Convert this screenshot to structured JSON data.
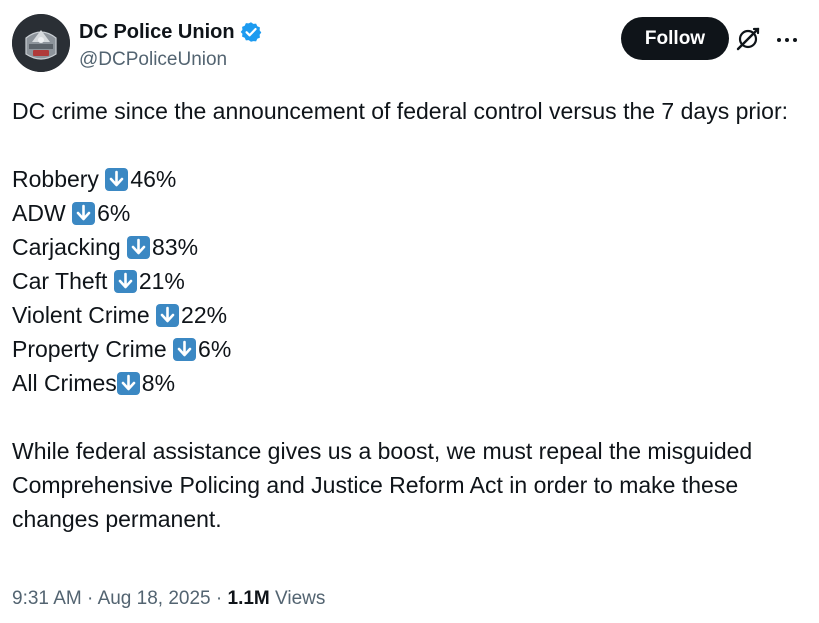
{
  "author": {
    "display_name": "DC Police Union",
    "handle": "@DCPoliceUnion",
    "verified": true
  },
  "actions": {
    "follow_label": "Follow",
    "grok_icon": "grok-icon",
    "more_icon": "more-icon"
  },
  "tweet": {
    "intro": "DC crime since the announcement of federal control versus the 7 days prior:",
    "stats": [
      {
        "label": "Robbery ",
        "value": "46%"
      },
      {
        "label": "ADW ",
        "value": "6%"
      },
      {
        "label": "Carjacking ",
        "value": "83%"
      },
      {
        "label": "Car Theft ",
        "value": "21%"
      },
      {
        "label": "Violent Crime ",
        "value": "22%"
      },
      {
        "label": "Property Crime ",
        "value": "6%"
      },
      {
        "label": "All Crimes",
        "value": "8%"
      }
    ],
    "closing": "While federal assistance gives us a boost, we must repeal the misguided Comprehensive Policing and Justice Reform Act in order to make these changes permanent."
  },
  "meta": {
    "time": "9:31 AM",
    "separator": " · ",
    "date": "Aug 18, 2025",
    "views_count": "1.1M",
    "views_label": " Views"
  },
  "colors": {
    "text": "#0f1419",
    "secondary": "#536471",
    "verified_blue": "#1d9bf0",
    "arrow_emoji_bg": "#3b88c3"
  }
}
